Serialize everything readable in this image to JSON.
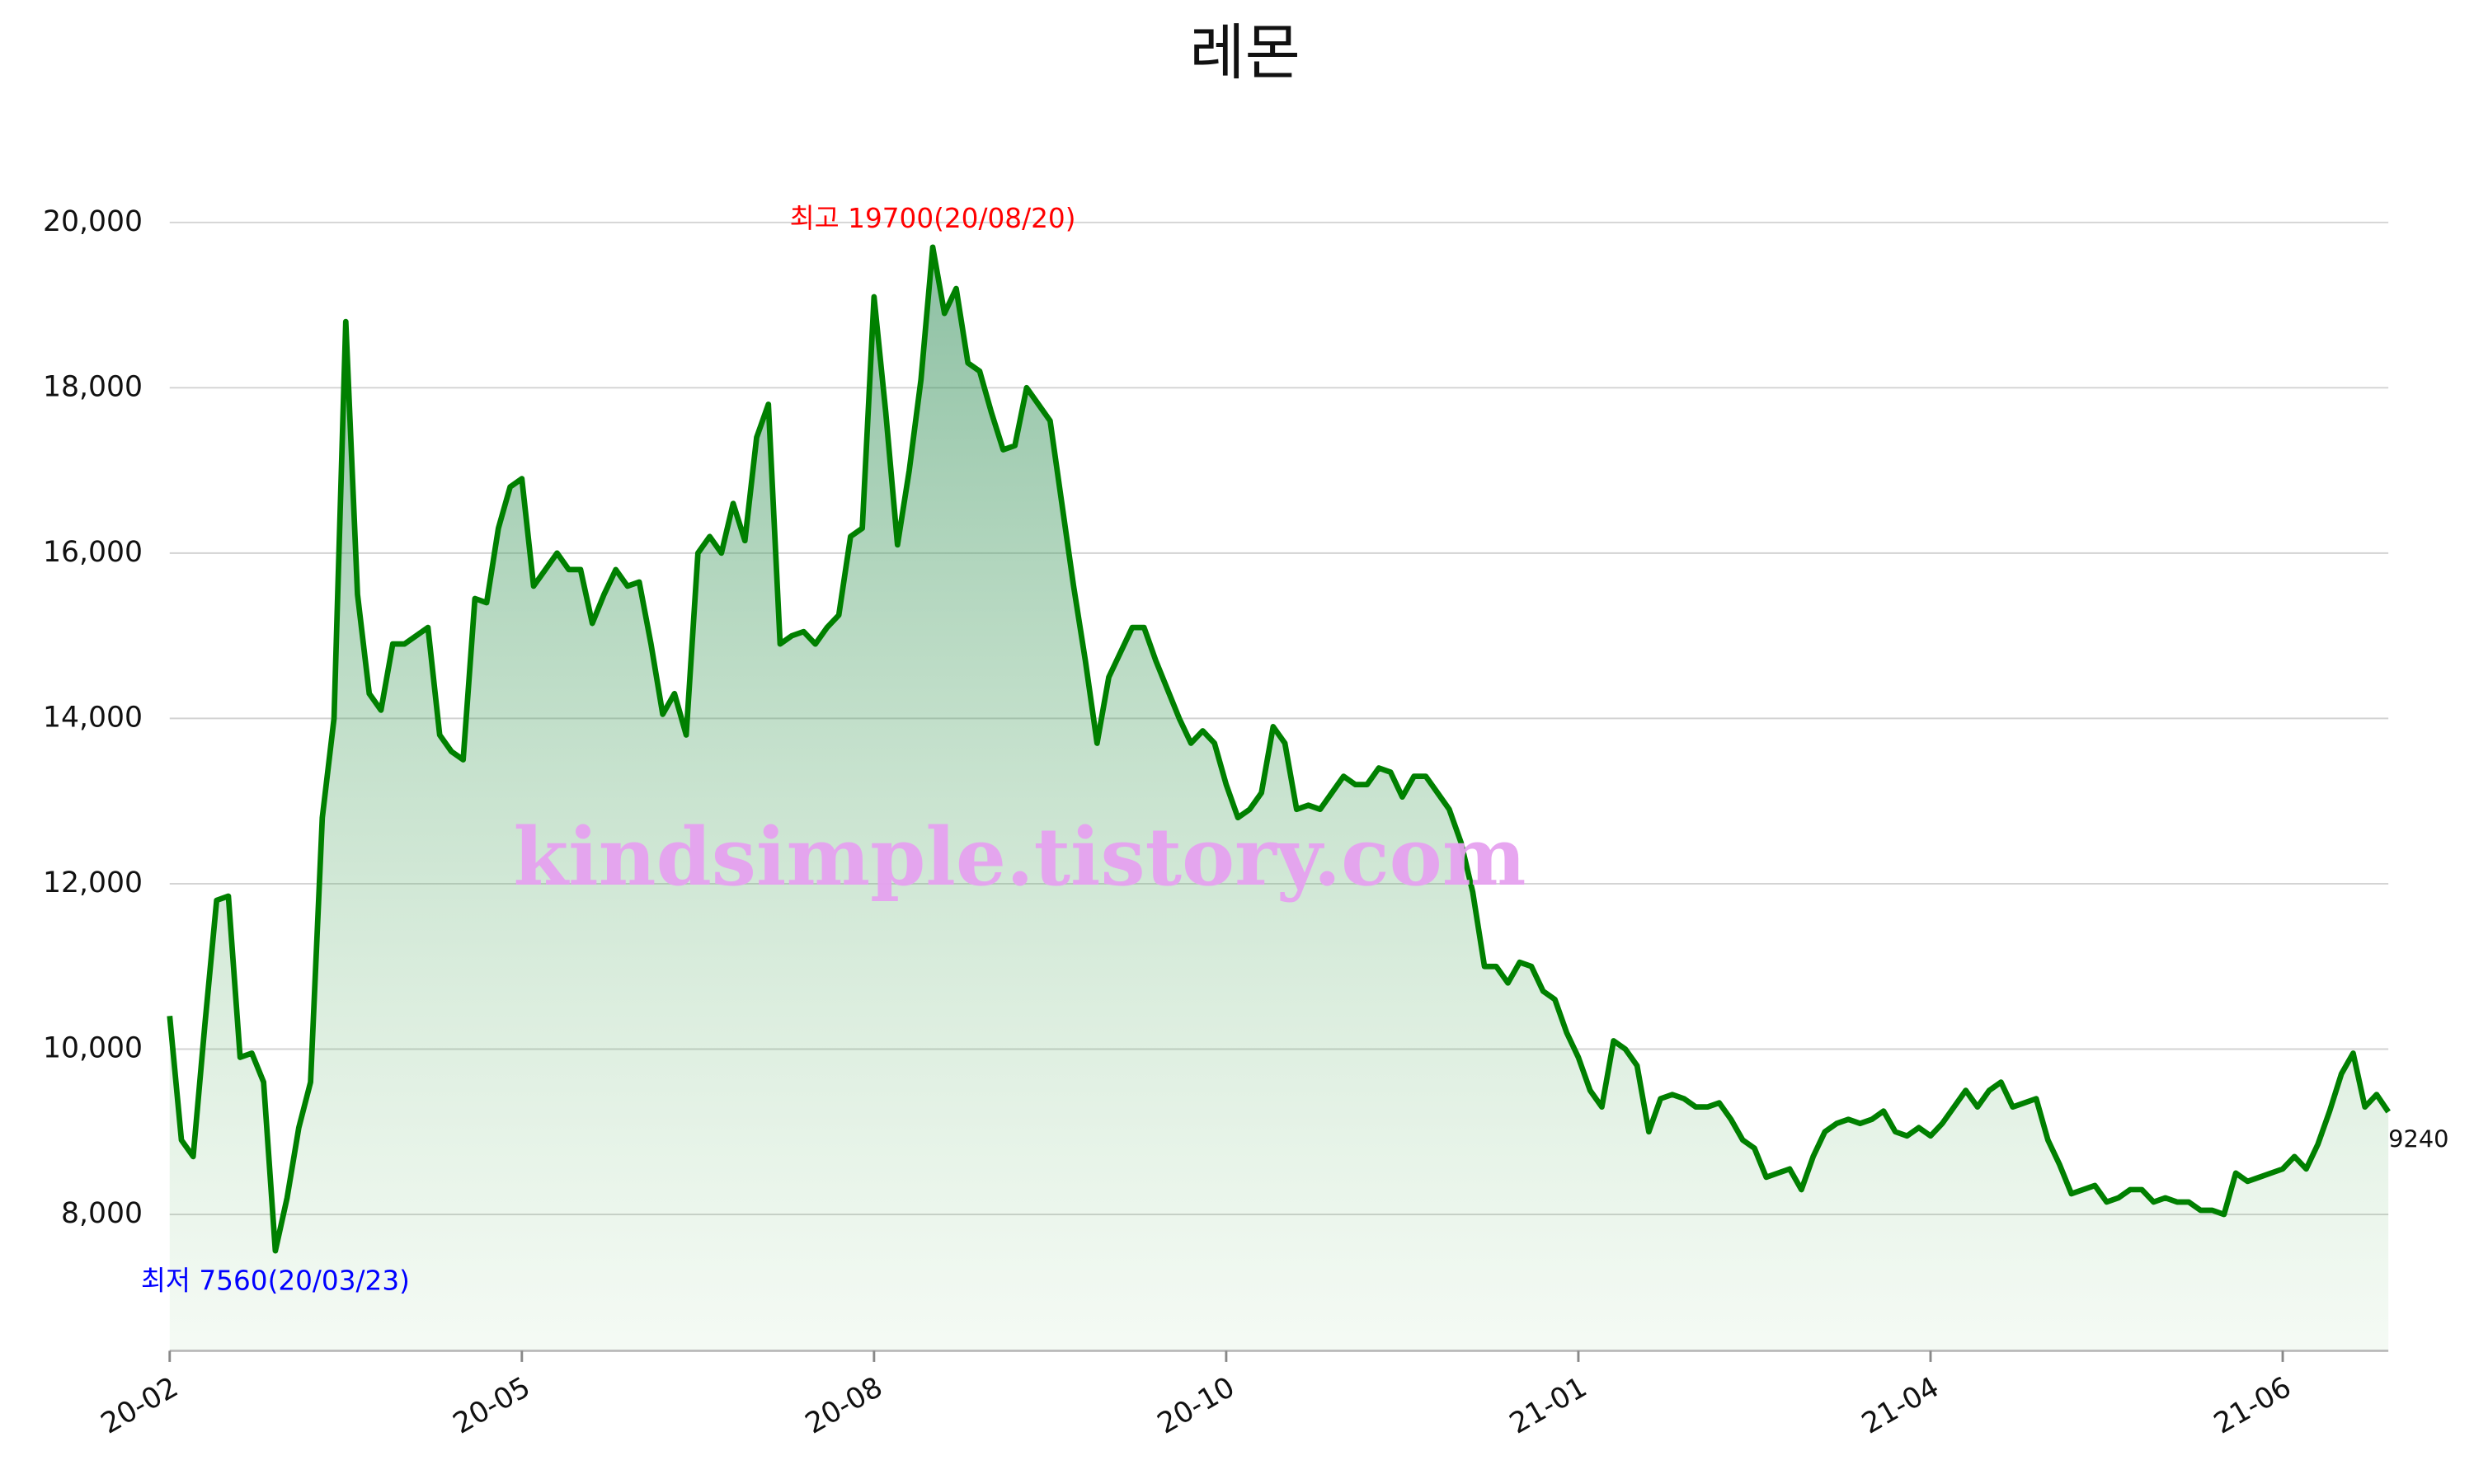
{
  "chart_data": {
    "type": "line",
    "title": "레몬",
    "watermark": "kindsimple.tistory.com",
    "color": "#008000",
    "area": true,
    "grid": true,
    "values": [
      10400,
      8900,
      8700,
      10300,
      11800,
      11850,
      9900,
      9950,
      9600,
      7560,
      8200,
      9050,
      9600,
      12800,
      14000,
      18800,
      15500,
      14300,
      14100,
      14900,
      14900,
      15000,
      15100,
      13800,
      13600,
      13500,
      15450,
      15400,
      16300,
      16800,
      16900,
      15600,
      15800,
      16000,
      15800,
      15800,
      15150,
      15500,
      15800,
      15600,
      15650,
      14900,
      14050,
      14300,
      13800,
      16000,
      16200,
      16000,
      16600,
      16150,
      17400,
      17800,
      14900,
      15000,
      15050,
      14900,
      15100,
      15250,
      16200,
      16300,
      19100,
      17700,
      16100,
      17000,
      18100,
      19700,
      18900,
      19200,
      18300,
      18200,
      17700,
      17250,
      17300,
      18000,
      17800,
      17600,
      16600,
      15600,
      14700,
      13700,
      14500,
      14800,
      15100,
      15100,
      14700,
      14350,
      14000,
      13700,
      13850,
      13700,
      13200,
      12800,
      12900,
      13100,
      13900,
      13700,
      12900,
      12950,
      12900,
      13100,
      13300,
      13200,
      13200,
      13400,
      13350,
      13050,
      13300,
      13300,
      13100,
      12900,
      12500,
      11900,
      11000,
      11000,
      10800,
      11050,
      11000,
      10700,
      10600,
      10200,
      9900,
      9500,
      9300,
      10100,
      10000,
      9800,
      9000,
      9400,
      9450,
      9400,
      9300,
      9300,
      9350,
      9150,
      8900,
      8800,
      8450,
      8500,
      8550,
      8300,
      8700,
      9000,
      9100,
      9150,
      9100,
      9150,
      9250,
      9000,
      8950,
      9050,
      8950,
      9100,
      9300,
      9500,
      9300,
      9500,
      9600,
      9300,
      9350,
      9400,
      8900,
      8600,
      8250,
      8300,
      8350,
      8150,
      8200,
      8300,
      8300,
      8150,
      8200,
      8150,
      8150,
      8050,
      8050,
      8000,
      8500,
      8400,
      8450,
      8500,
      8550,
      8700,
      8550,
      8850,
      9250,
      9700,
      9950,
      9300,
      9450,
      9240
    ],
    "xlim": [
      0,
      189
    ],
    "xticks": [
      {
        "value": 0,
        "label": "20-02"
      },
      {
        "value": 30,
        "label": "20-05"
      },
      {
        "value": 60,
        "label": "20-08"
      },
      {
        "value": 90,
        "label": "20-10"
      },
      {
        "value": 120,
        "label": "21-01"
      },
      {
        "value": 150,
        "label": "21-04"
      },
      {
        "value": 180,
        "label": "21-06"
      }
    ],
    "ylim": [
      6350,
      20600
    ],
    "yticks": [
      {
        "value": 8000,
        "label": "8,000"
      },
      {
        "value": 10000,
        "label": "10,000"
      },
      {
        "value": 12000,
        "label": "12,000"
      },
      {
        "value": 14000,
        "label": "14,000"
      },
      {
        "value": 16000,
        "label": "16,000"
      },
      {
        "value": 18000,
        "label": "18,000"
      },
      {
        "value": 20000,
        "label": "20,000"
      }
    ],
    "annotations": [
      {
        "text": "최고 19700(20/08/20)",
        "color": "#ff0000",
        "at": "max"
      },
      {
        "text": "최저 7560(20/03/23)",
        "color": "#0000ff",
        "at": "min"
      }
    ]
  }
}
